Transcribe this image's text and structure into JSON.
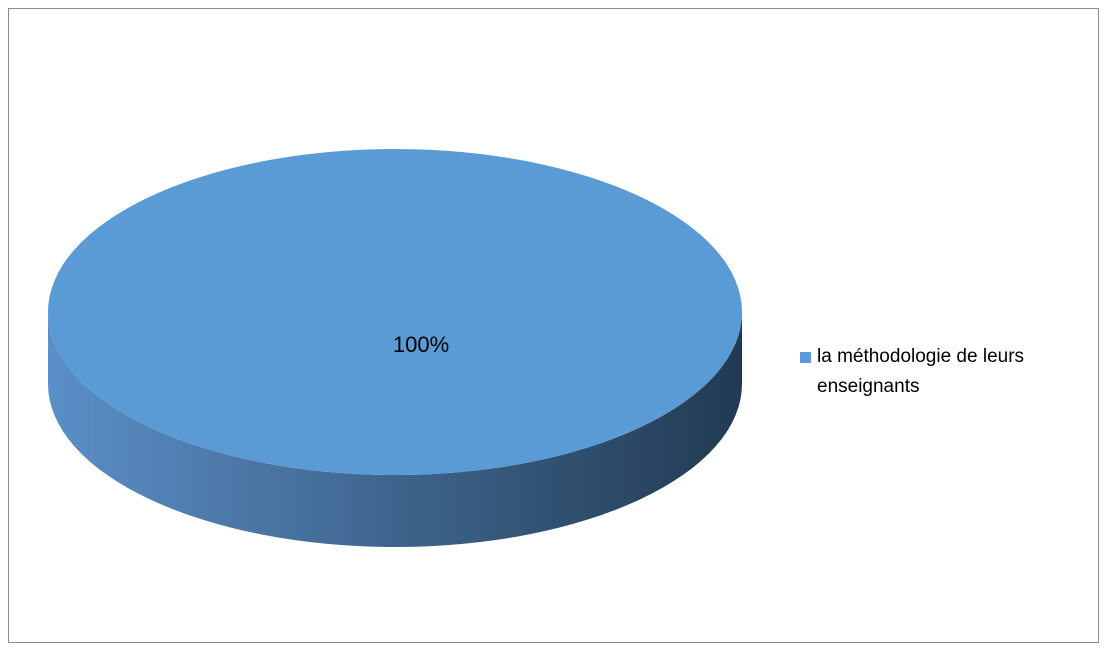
{
  "chart_data": {
    "type": "pie",
    "categories": [
      "la méthodologie de leurs enseignants"
    ],
    "values": [
      100
    ],
    "data_labels": [
      "100%"
    ],
    "title": "",
    "legend_position": "right",
    "three_d": true,
    "colors": {
      "top": "#5b9bd5",
      "side_light": "#5b8fc8",
      "side_dark": "#223a52"
    }
  }
}
